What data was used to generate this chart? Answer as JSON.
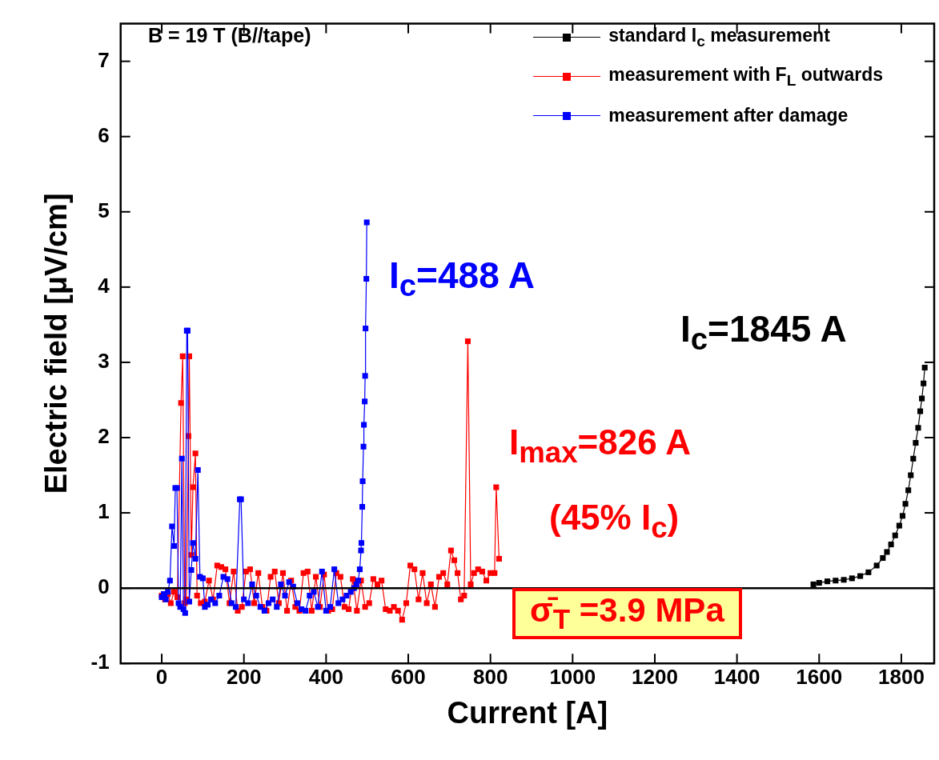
{
  "chart_data": {
    "type": "line",
    "xlabel": "Current [A]",
    "ylabel": "Electric field [μV/cm]",
    "xlim": [
      -100,
      1880
    ],
    "xticks": [
      0,
      200,
      400,
      600,
      800,
      1000,
      1200,
      1400,
      1600,
      1800
    ],
    "ylim": [
      -1,
      7.5
    ],
    "yticks": [
      -1,
      0,
      1,
      2,
      3,
      4,
      5,
      6,
      7
    ],
    "grid": false,
    "legend": "top right",
    "marker": "square",
    "line_style": "solid",
    "ref_lines": [
      {
        "axis": "y",
        "value": 0,
        "color": "#000000"
      }
    ],
    "annotations": [
      "B = 19 T (B//tape)",
      "I$_{c}$=488 A",
      "I$_{c}$=1845 A",
      "I$_{max}$=826 A",
      "(45% I$_{c}$)",
      "σ̄$_{T}$ =3.9 MPa"
    ],
    "series": [
      {
        "name": "standard I$_{c}$ measurement",
        "color": "#000000",
        "x": [
          1586,
          1600,
          1620,
          1640,
          1660,
          1680,
          1700,
          1720,
          1740,
          1755,
          1765,
          1775,
          1785,
          1795,
          1803,
          1810,
          1817,
          1823,
          1829,
          1835,
          1841,
          1846,
          1850,
          1854,
          1857
        ],
        "values": [
          0.05,
          0.07,
          0.09,
          0.1,
          0.11,
          0.13,
          0.16,
          0.21,
          0.3,
          0.4,
          0.48,
          0.58,
          0.7,
          0.83,
          0.96,
          1.12,
          1.3,
          1.5,
          1.72,
          1.93,
          2.13,
          2.35,
          2.52,
          2.72,
          2.93
        ]
      },
      {
        "name": "measurement with F$_{L}$ outwards",
        "color": "#ff0000",
        "x": [
          0,
          8,
          15,
          22,
          30,
          38,
          47,
          51,
          56,
          60,
          65,
          67,
          72,
          76,
          82,
          86,
          95,
          105,
          115,
          125,
          135,
          145,
          155,
          165,
          175,
          185,
          195,
          205,
          215,
          225,
          235,
          245,
          255,
          265,
          275,
          285,
          295,
          305,
          315,
          325,
          335,
          345,
          355,
          365,
          375,
          385,
          395,
          405,
          415,
          425,
          435,
          445,
          455,
          465,
          475,
          485,
          495,
          505,
          515,
          525,
          535,
          545,
          555,
          565,
          575,
          585,
          595,
          605,
          615,
          625,
          635,
          645,
          655,
          665,
          675,
          685,
          695,
          704,
          712,
          720,
          728,
          736,
          745,
          752,
          760,
          770,
          780,
          790,
          800,
          810,
          814,
          821
        ],
        "values": [
          -0.1,
          -0.15,
          -0.08,
          -0.2,
          -0.05,
          -0.12,
          2.46,
          3.08,
          -0.2,
          -0.15,
          2.02,
          3.08,
          0.44,
          1.34,
          1.79,
          -0.1,
          -0.2,
          -0.18,
          0.1,
          -0.15,
          0.3,
          0.28,
          0.25,
          -0.2,
          0.22,
          -0.3,
          -0.25,
          0.22,
          0.25,
          -0.2,
          0.2,
          -0.25,
          -0.3,
          0.15,
          0.22,
          -0.2,
          0.2,
          -0.3,
          0.1,
          -0.25,
          -0.3,
          0.2,
          0.22,
          -0.3,
          0.15,
          -0.25,
          0.18,
          -0.3,
          -0.28,
          0.2,
          0.15,
          -0.25,
          -0.28,
          0.12,
          -0.3,
          0.1,
          -0.25,
          -0.2,
          0.12,
          0.05,
          0.1,
          -0.28,
          -0.3,
          -0.25,
          -0.3,
          -0.42,
          -0.2,
          0.3,
          0.25,
          -0.15,
          0.2,
          -0.2,
          0.05,
          -0.25,
          0.15,
          0.2,
          0.05,
          0.5,
          0.37,
          0.2,
          -0.15,
          -0.1,
          3.28,
          0.05,
          0.2,
          0.25,
          0.22,
          0.1,
          0.2,
          0.2,
          1.34,
          0.39
        ]
      },
      {
        "name": "measurement after damage",
        "color": "#0000ff",
        "x": [
          0,
          5,
          10,
          15,
          20,
          25,
          30,
          33,
          37,
          41,
          45,
          49,
          53,
          57,
          61,
          63,
          67,
          72,
          76,
          82,
          88,
          93,
          100,
          105,
          112,
          120,
          130,
          140,
          150,
          160,
          170,
          180,
          190,
          193,
          200,
          210,
          220,
          230,
          240,
          250,
          260,
          270,
          280,
          290,
          300,
          310,
          320,
          330,
          340,
          350,
          360,
          370,
          380,
          390,
          400,
          410,
          420,
          430,
          440,
          450,
          460,
          468,
          474,
          478,
          482,
          485,
          486,
          488,
          489,
          491,
          492,
          494,
          495,
          496,
          498,
          499
        ],
        "values": [
          -0.12,
          -0.08,
          -0.15,
          -0.05,
          0.1,
          0.82,
          0.56,
          1.33,
          1.33,
          -0.2,
          -0.25,
          1.72,
          -0.28,
          -0.33,
          3.42,
          3.42,
          -0.18,
          0.24,
          0.6,
          0.39,
          1.57,
          0.15,
          0.13,
          -0.25,
          -0.22,
          -0.15,
          -0.2,
          -0.1,
          0.15,
          0.12,
          -0.2,
          -0.25,
          1.18,
          1.18,
          -0.15,
          -0.2,
          0.05,
          -0.1,
          -0.25,
          -0.3,
          -0.2,
          -0.15,
          -0.25,
          0.05,
          -0.1,
          0.08,
          0.02,
          -0.2,
          -0.28,
          -0.3,
          -0.1,
          -0.05,
          -0.25,
          0.22,
          -0.3,
          -0.25,
          0.25,
          -0.2,
          -0.15,
          -0.1,
          -0.05,
          0.0,
          0.05,
          0.1,
          0.25,
          0.5,
          0.6,
          1.08,
          1.42,
          1.88,
          2.17,
          2.48,
          2.82,
          3.45,
          4.11,
          4.86
        ]
      }
    ]
  }
}
